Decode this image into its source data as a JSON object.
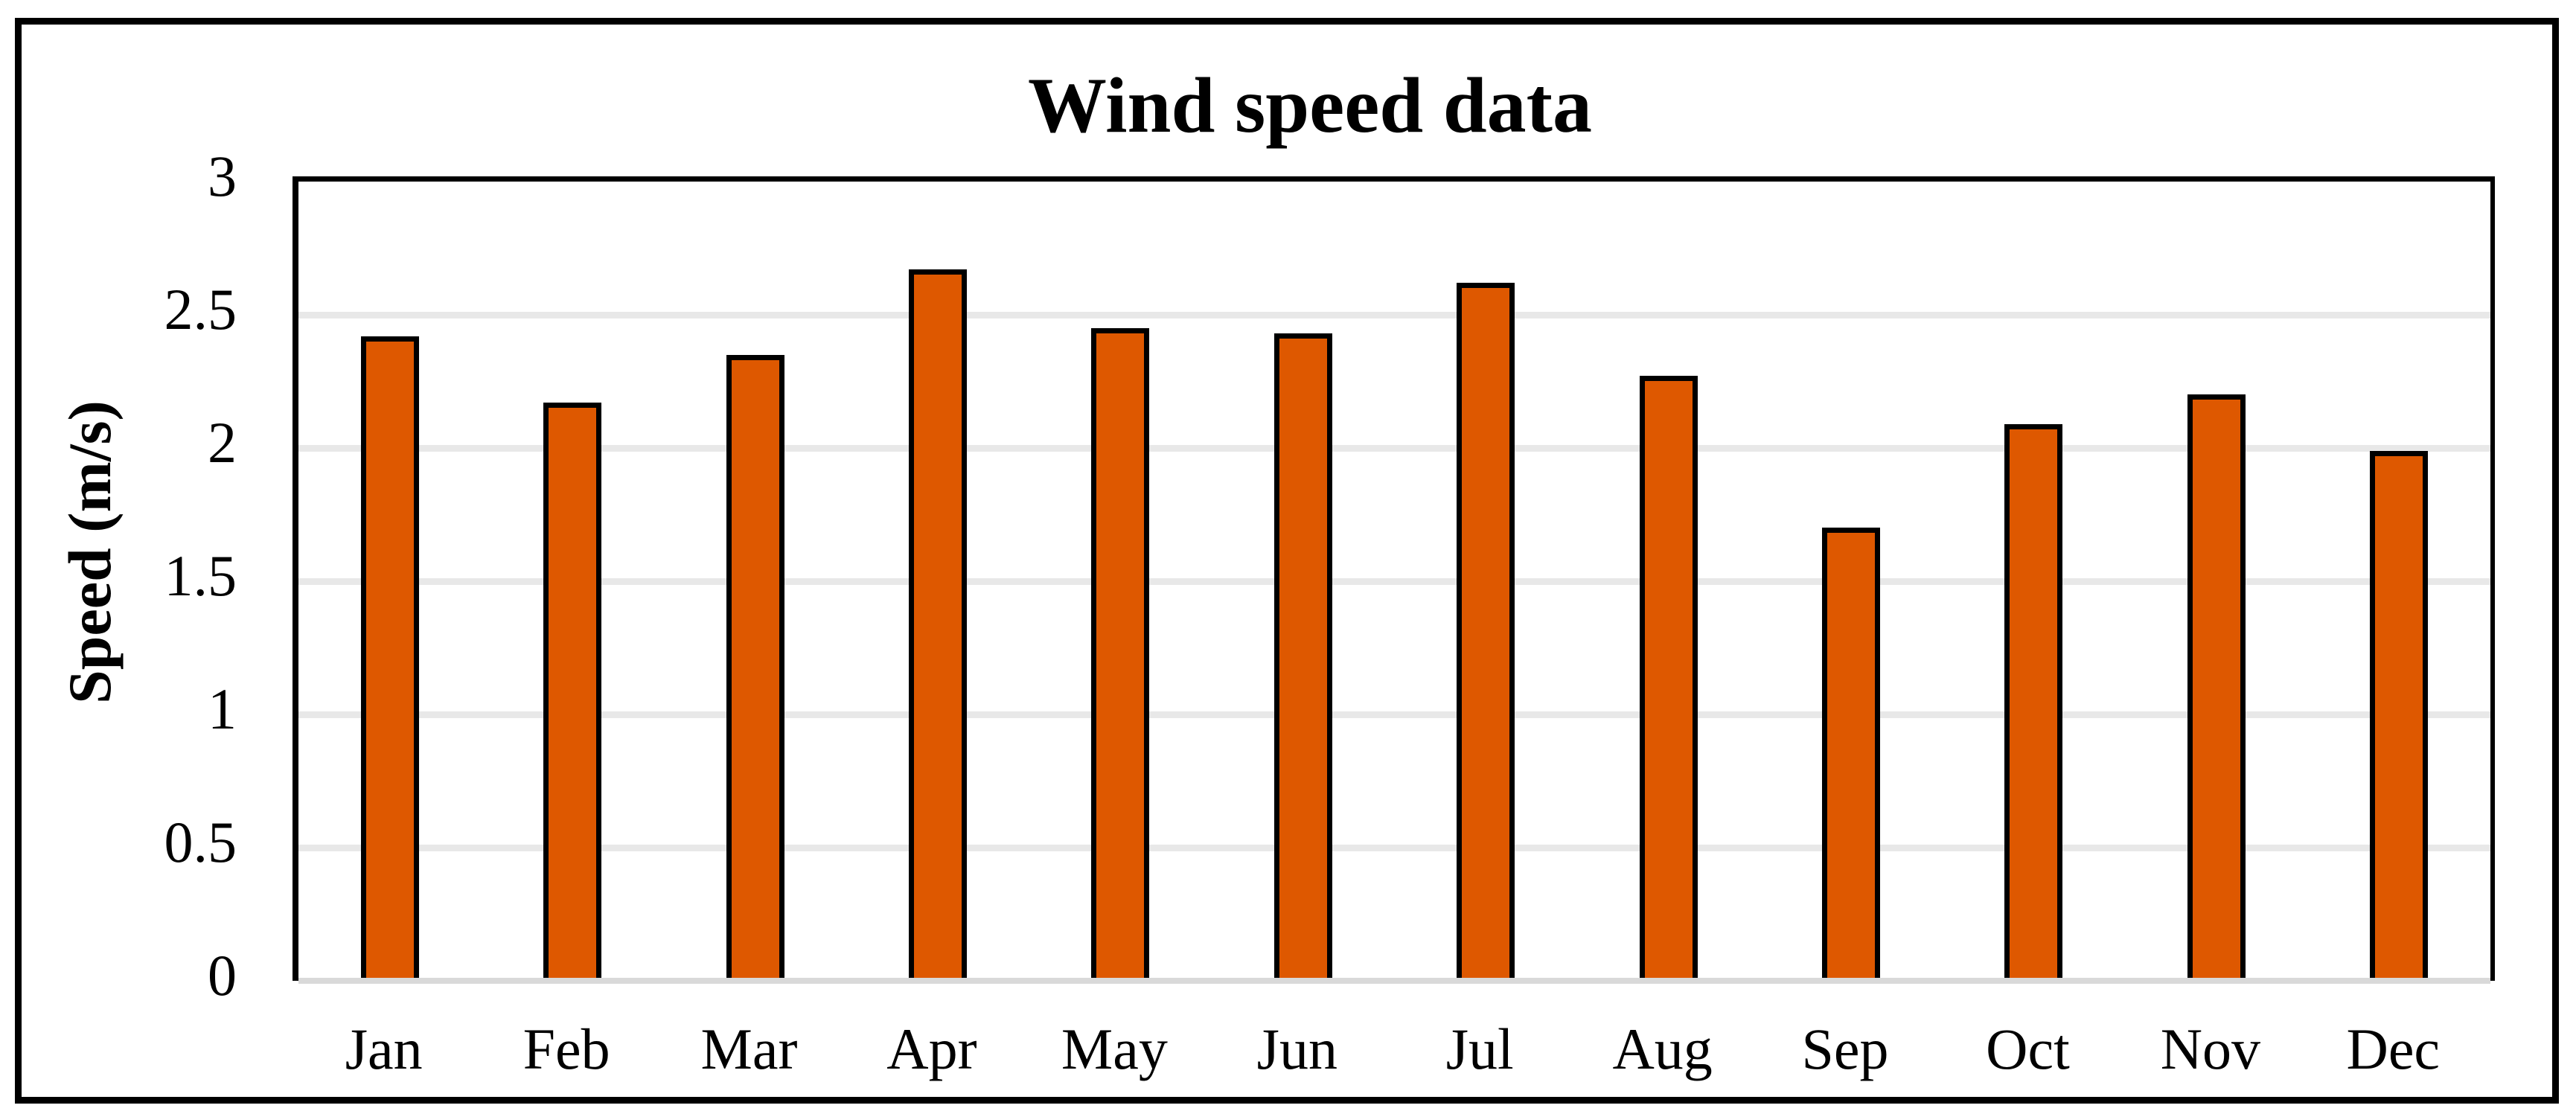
{
  "chart": {
    "title": "Wind speed data",
    "y_axis": {
      "title": "Speed (m/s)",
      "ticks": [
        {
          "value": 3,
          "label": "3"
        },
        {
          "value": 2.5,
          "label": "2.5"
        },
        {
          "value": 2,
          "label": "2"
        },
        {
          "value": 1.5,
          "label": "1.5"
        },
        {
          "value": 1,
          "label": "1"
        },
        {
          "value": 0.5,
          "label": "0.5"
        },
        {
          "value": 0,
          "label": "0"
        }
      ]
    }
  },
  "chart_data": {
    "type": "bar",
    "title": "Wind speed data",
    "categories": [
      "Jan",
      "Feb",
      "Mar",
      "Apr",
      "May",
      "Jun",
      "Jul",
      "Aug",
      "Sep",
      "Oct",
      "Nov",
      "Dec"
    ],
    "values": [
      2.42,
      2.17,
      2.35,
      2.67,
      2.45,
      2.43,
      2.62,
      2.27,
      1.7,
      2.09,
      2.2,
      1.99
    ],
    "xlabel": "",
    "ylabel": "Speed (m/s)",
    "ylim": [
      0,
      3
    ],
    "y_tick_step": 0.5,
    "grid": true,
    "legend_position": "none",
    "bar_color": "#DE5800",
    "bar_border_color": "#000000",
    "gridline_color": "#E8E8E8",
    "zero_line_color": "#D9D9D9",
    "plot_border_color": "#000000",
    "outer_border_color": "#000000",
    "background_color": "#FFFFFF"
  }
}
